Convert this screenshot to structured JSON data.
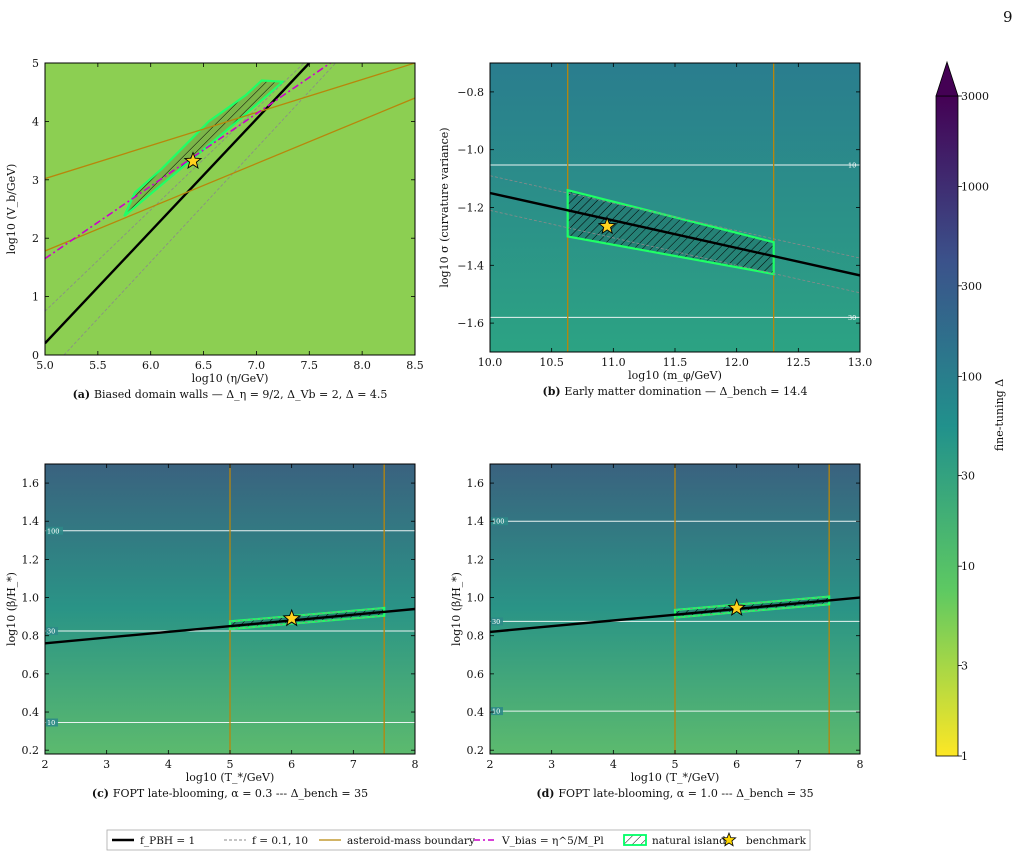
{
  "page_number": "9",
  "colorbar": {
    "label": "fine-tuning Δ",
    "ticks": [
      "1",
      "3",
      "10",
      "30",
      "100",
      "300",
      "1000",
      "3000"
    ],
    "scale": "log",
    "range": [
      1,
      3000
    ],
    "colormap": [
      "#fde725",
      "#5ec962",
      "#21918c",
      "#3b528b",
      "#440154"
    ]
  },
  "legend": [
    {
      "label": "f_PBH = 1",
      "style": "solid",
      "color": "#000000"
    },
    {
      "label": "f = 0.1, 10",
      "style": "dashed",
      "color": "#888888"
    },
    {
      "label": "asteroid-mass boundary",
      "style": "solid",
      "color": "#b8860b"
    },
    {
      "label": "V_bias = η^5/M_Pl",
      "style": "dashdot",
      "color": "#cc00cc"
    },
    {
      "label": "natural island",
      "style": "hatch",
      "color": "#00ff66"
    },
    {
      "label": "benchmark",
      "style": "star",
      "color": "#ffd700"
    }
  ],
  "chart_data": [
    {
      "id": "a",
      "type": "line",
      "caption_prefix": "(a)",
      "caption": "Biased domain walls — Δ_η = 9/2, Δ_Vb = 2, Δ = 4.5",
      "xlabel": "log10 (η/GeV)",
      "ylabel": "log10 (V_b/GeV)",
      "xlim": [
        5.0,
        8.5
      ],
      "ylim": [
        0,
        5
      ],
      "xticks": [
        "5.0",
        "5.5",
        "6.0",
        "6.5",
        "7.0",
        "7.5",
        "8.0",
        "8.5"
      ],
      "yticks": [
        "0",
        "1",
        "2",
        "3",
        "4",
        "5"
      ],
      "background": "#8ccf52",
      "series": [
        {
          "name": "f_PBH = 1",
          "kind": "fpbh",
          "x": [
            5.0,
            7.5
          ],
          "y": [
            0.2,
            5.0
          ]
        },
        {
          "kind": "f_dashed",
          "x": [
            5.0,
            7.45
          ],
          "y": [
            0.75,
            5.0
          ]
        },
        {
          "kind": "f_dashed",
          "x": [
            5.18,
            7.75
          ],
          "y": [
            0.0,
            5.0
          ]
        },
        {
          "kind": "asteroid",
          "x": [
            5.0,
            8.5
          ],
          "y": [
            3.02,
            5.0
          ]
        },
        {
          "kind": "asteroid",
          "x": [
            5.0,
            8.5
          ],
          "y": [
            1.78,
            4.4
          ]
        },
        {
          "name": "V_bias = η^5/M_Pl",
          "kind": "vbias",
          "x": [
            5.0,
            7.7
          ],
          "y": [
            1.65,
            5.0
          ]
        }
      ],
      "island": [
        [
          5.75,
          2.38
        ],
        [
          6.85,
          4.05
        ],
        [
          7.25,
          4.68
        ],
        [
          7.05,
          4.7
        ],
        [
          6.9,
          4.45
        ],
        [
          6.55,
          4.0
        ],
        [
          6.1,
          3.18
        ],
        [
          5.85,
          2.78
        ]
      ],
      "benchmark": {
        "x": 6.4,
        "y": 3.32
      }
    },
    {
      "id": "b",
      "type": "line",
      "caption_prefix": "(b)",
      "caption": "Early matter domination — Δ_bench = 14.4",
      "xlabel": "log10 (m_φ/GeV)",
      "ylabel": "log10 σ  (curvature variance)",
      "xlim": [
        10.0,
        13.0
      ],
      "ylim": [
        -1.7,
        -0.7
      ],
      "xticks": [
        "10.0",
        "10.5",
        "11.0",
        "11.5",
        "12.0",
        "12.5",
        "13.0"
      ],
      "yticks": [
        "−1.6",
        "−1.4",
        "−1.2",
        "−1.0",
        "−0.8"
      ],
      "background_gradient": [
        "#2a7d8e",
        "#2ca383"
      ],
      "contours": [
        {
          "label": "10",
          "y": -1.053
        },
        {
          "label": "30",
          "y": -1.58
        }
      ],
      "verticals": [
        10.63,
        12.3
      ],
      "series": [
        {
          "name": "f_PBH = 1",
          "kind": "fpbh",
          "x": [
            10.0,
            13.0
          ],
          "y": [
            -1.15,
            -1.435
          ]
        },
        {
          "kind": "f_dashed",
          "x": [
            10.0,
            13.0
          ],
          "y": [
            -1.09,
            -1.375
          ]
        },
        {
          "kind": "f_dashed",
          "x": [
            10.0,
            13.0
          ],
          "y": [
            -1.21,
            -1.495
          ]
        }
      ],
      "island": [
        [
          10.63,
          -1.14
        ],
        [
          12.3,
          -1.32
        ],
        [
          12.3,
          -1.43
        ],
        [
          10.63,
          -1.3
        ]
      ],
      "benchmark": {
        "x": 10.95,
        "y": -1.265
      }
    },
    {
      "id": "c",
      "type": "line",
      "caption_prefix": "(c)",
      "caption": "FOPT late-blooming, α = 0.3  ---  Δ_bench = 35",
      "xlabel": "log10 (T_*/GeV)",
      "ylabel": "log10 (β/H_*)",
      "xlim": [
        2,
        8
      ],
      "ylim": [
        0.18,
        1.7
      ],
      "xticks": [
        "2",
        "3",
        "4",
        "5",
        "6",
        "7",
        "8"
      ],
      "yticks": [
        "0.2",
        "0.4",
        "0.6",
        "0.8",
        "1.0",
        "1.2",
        "1.4",
        "1.6"
      ],
      "background_gradient": [
        "#3a627f",
        "#2a9486",
        "#5cba6e"
      ],
      "contours": [
        {
          "label": "100",
          "y": 1.35
        },
        {
          "label": "30",
          "y": 0.825
        },
        {
          "label": "10",
          "y": 0.345
        }
      ],
      "verticals": [
        5.0,
        7.5
      ],
      "series": [
        {
          "name": "f_PBH = 1",
          "kind": "fpbh",
          "x": [
            2,
            8
          ],
          "y": [
            0.76,
            0.94
          ]
        },
        {
          "kind": "f_dashed",
          "x": [
            5.0,
            7.5
          ],
          "y": [
            0.875,
            0.945
          ]
        },
        {
          "kind": "f_dashed",
          "x": [
            5.0,
            7.5
          ],
          "y": [
            0.835,
            0.905
          ]
        }
      ],
      "island": [
        [
          5.0,
          0.875
        ],
        [
          7.5,
          0.945
        ],
        [
          7.5,
          0.905
        ],
        [
          5.0,
          0.835
        ]
      ],
      "benchmark": {
        "x": 6.0,
        "y": 0.89
      }
    },
    {
      "id": "d",
      "type": "line",
      "caption_prefix": "(d)",
      "caption": "FOPT late-blooming, α = 1.0  ---  Δ_bench = 35",
      "xlabel": "log10 (T_*/GeV)",
      "ylabel": "log10 (β/H_*)",
      "xlim": [
        2,
        8
      ],
      "ylim": [
        0.18,
        1.7
      ],
      "xticks": [
        "2",
        "3",
        "4",
        "5",
        "6",
        "7",
        "8"
      ],
      "yticks": [
        "0.2",
        "0.4",
        "0.6",
        "0.8",
        "1.0",
        "1.2",
        "1.4",
        "1.6"
      ],
      "background_gradient": [
        "#3a627f",
        "#2a9486",
        "#5cba6e"
      ],
      "contours": [
        {
          "label": "100",
          "y": 1.4
        },
        {
          "label": "30",
          "y": 0.875
        },
        {
          "label": "10",
          "y": 0.405
        }
      ],
      "verticals": [
        5.0,
        7.5
      ],
      "series": [
        {
          "name": "f_PBH = 1",
          "kind": "fpbh",
          "x": [
            2,
            8
          ],
          "y": [
            0.82,
            1.0
          ]
        },
        {
          "kind": "f_dashed",
          "x": [
            5.0,
            7.5
          ],
          "y": [
            0.935,
            1.005
          ]
        },
        {
          "kind": "f_dashed",
          "x": [
            5.0,
            7.5
          ],
          "y": [
            0.895,
            0.965
          ]
        }
      ],
      "island": [
        [
          5.0,
          0.935
        ],
        [
          7.5,
          1.005
        ],
        [
          7.5,
          0.965
        ],
        [
          5.0,
          0.895
        ]
      ],
      "benchmark": {
        "x": 6.0,
        "y": 0.945
      }
    }
  ]
}
